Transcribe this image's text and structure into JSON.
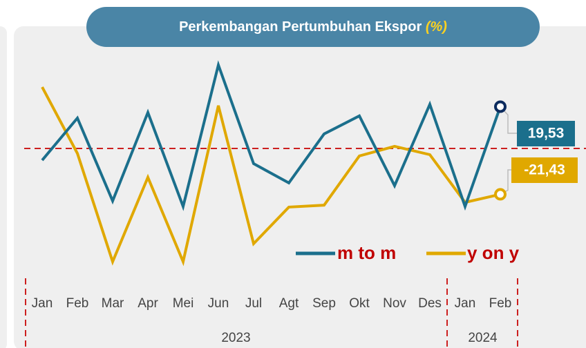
{
  "chart_data": {
    "type": "line",
    "title": "Perkembangan Pertumbuhan Ekspor",
    "title_unit": "(%)",
    "categories": [
      "Jan",
      "Feb",
      "Mar",
      "Apr",
      "Mei",
      "Jun",
      "Jul",
      "Agt",
      "Sep",
      "Okt",
      "Nov",
      "Des",
      "Jan",
      "Feb"
    ],
    "x_groups": [
      {
        "label": "2023",
        "count": 12
      },
      {
        "label": "2024",
        "count": 2
      }
    ],
    "series": [
      {
        "name": "m to m",
        "color": "#1b6f8c",
        "marker_color": "#0c2b5e",
        "values": [
          -5.5,
          14.2,
          -24.5,
          16.8,
          -27.1,
          39.0,
          -7.1,
          -16.1,
          6.8,
          15.2,
          -17.4,
          20.6,
          -27.1,
          19.53
        ],
        "value_labels": [
          null,
          null,
          null,
          null,
          null,
          null,
          null,
          null,
          null,
          null,
          null,
          null,
          null,
          "19,53"
        ]
      },
      {
        "name": "y on y",
        "color": "#e0a800",
        "marker_color": "#e0a800",
        "values": [
          28.7,
          -2.3,
          -52.9,
          -13.5,
          -52.9,
          20.0,
          -44.5,
          -27.4,
          -26.5,
          -3.5,
          1.0,
          -2.9,
          -25.2,
          -21.43
        ],
        "value_labels": [
          null,
          null,
          null,
          null,
          null,
          null,
          null,
          null,
          null,
          null,
          null,
          null,
          null,
          "-21,43"
        ]
      }
    ],
    "ylim": [
      -60,
      50
    ],
    "hline": 0,
    "hline_color": "#cc1f1f"
  }
}
